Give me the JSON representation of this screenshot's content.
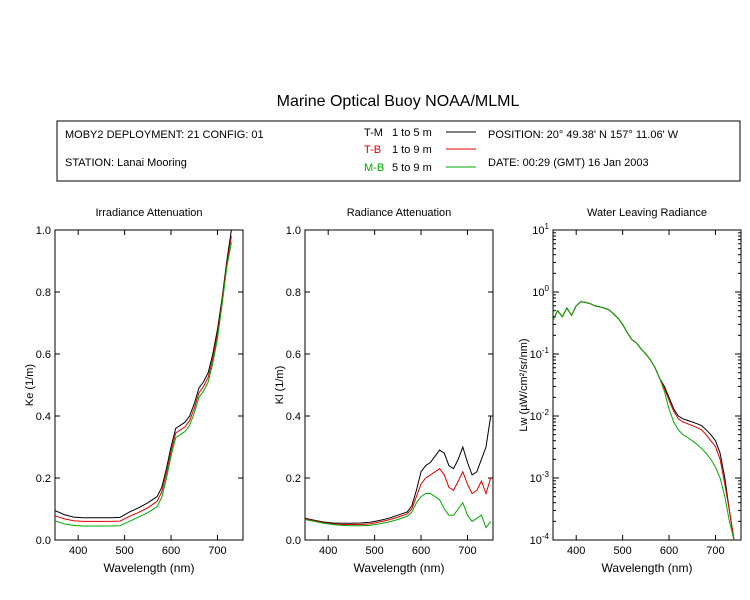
{
  "title": "Marine Optical Buoy NOAA/MLML",
  "header": {
    "deployment": "MOBY2 DEPLOYMENT: 21 CONFIG: 01",
    "station": "STATION: Lanai Mooring",
    "position": "POSITION: 20° 49.38' N   157° 11.06' W",
    "date": "DATE: 00:29 (GMT) 16 Jan 2003"
  },
  "legend": [
    {
      "code": "T-M",
      "range": "1 to 5  m",
      "color": "#000000"
    },
    {
      "code": "T-B",
      "range": "1 to 9  m",
      "color": "#dd0000"
    },
    {
      "code": "M-B",
      "range": "5 to 9  m",
      "color": "#00aa00"
    }
  ],
  "chart_data": [
    {
      "type": "line",
      "title": "Irradiance Attenuation",
      "xlabel": "Wavelength (nm)",
      "ylabel": "Ke  (1/m)",
      "xlim": [
        350,
        755
      ],
      "ylim": [
        0,
        1
      ],
      "xticks": [
        400,
        500,
        600,
        700
      ],
      "yticks": [
        0.0,
        0.2,
        0.4,
        0.6,
        0.8,
        1.0
      ],
      "ytick_labels": [
        "0.0",
        "0.2",
        "0.4",
        "0.6",
        "0.8",
        "1.0"
      ],
      "x": [
        350,
        370,
        390,
        410,
        430,
        450,
        470,
        490,
        510,
        530,
        550,
        570,
        580,
        590,
        600,
        610,
        620,
        630,
        640,
        650,
        660,
        670,
        680,
        690,
        700,
        710,
        720,
        730
      ],
      "series": [
        {
          "name": "T-M",
          "color": "#000000",
          "values": [
            0.095,
            0.082,
            0.074,
            0.072,
            0.072,
            0.072,
            0.072,
            0.073,
            0.09,
            0.104,
            0.12,
            0.14,
            0.17,
            0.23,
            0.3,
            0.36,
            0.37,
            0.38,
            0.4,
            0.44,
            0.49,
            0.51,
            0.54,
            0.6,
            0.68,
            0.78,
            0.9,
            1.0
          ]
        },
        {
          "name": "T-B",
          "color": "#dd0000",
          "values": [
            0.078,
            0.068,
            0.062,
            0.06,
            0.06,
            0.06,
            0.06,
            0.061,
            0.076,
            0.089,
            0.104,
            0.125,
            0.155,
            0.215,
            0.285,
            0.345,
            0.355,
            0.365,
            0.385,
            0.425,
            0.475,
            0.495,
            0.525,
            0.585,
            0.665,
            0.77,
            0.89,
            0.98
          ]
        },
        {
          "name": "M-B",
          "color": "#00aa00",
          "values": [
            0.062,
            0.052,
            0.047,
            0.045,
            0.045,
            0.045,
            0.045,
            0.046,
            0.06,
            0.074,
            0.088,
            0.108,
            0.138,
            0.198,
            0.27,
            0.33,
            0.34,
            0.35,
            0.37,
            0.41,
            0.46,
            0.48,
            0.51,
            0.57,
            0.65,
            0.76,
            0.88,
            0.96
          ]
        }
      ]
    },
    {
      "type": "line",
      "title": "Radiance Attenuation",
      "xlabel": "Wavelength (nm)",
      "ylabel": "Kl  (1/m)",
      "xlim": [
        350,
        755
      ],
      "ylim": [
        0,
        1
      ],
      "xticks": [
        400,
        500,
        600,
        700
      ],
      "yticks": [
        0.0,
        0.2,
        0.4,
        0.6,
        0.8,
        1.0
      ],
      "ytick_labels": [
        "0.0",
        "0.2",
        "0.4",
        "0.6",
        "0.8",
        "1.0"
      ],
      "x": [
        350,
        370,
        390,
        410,
        430,
        450,
        470,
        490,
        510,
        530,
        550,
        570,
        580,
        590,
        600,
        610,
        620,
        630,
        640,
        650,
        660,
        670,
        680,
        690,
        700,
        710,
        720,
        730,
        740,
        750
      ],
      "series": [
        {
          "name": "T-M",
          "color": "#000000",
          "values": [
            0.07,
            0.064,
            0.058,
            0.055,
            0.054,
            0.054,
            0.055,
            0.057,
            0.063,
            0.07,
            0.08,
            0.09,
            0.11,
            0.16,
            0.22,
            0.24,
            0.25,
            0.27,
            0.29,
            0.28,
            0.24,
            0.23,
            0.26,
            0.3,
            0.25,
            0.21,
            0.22,
            0.26,
            0.3,
            0.4
          ]
        },
        {
          "name": "T-B",
          "color": "#dd0000",
          "values": [
            0.068,
            0.062,
            0.056,
            0.052,
            0.05,
            0.05,
            0.05,
            0.052,
            0.058,
            0.065,
            0.074,
            0.084,
            0.1,
            0.14,
            0.18,
            0.2,
            0.21,
            0.22,
            0.23,
            0.21,
            0.17,
            0.16,
            0.19,
            0.22,
            0.18,
            0.15,
            0.16,
            0.19,
            0.15,
            0.2
          ]
        },
        {
          "name": "M-B",
          "color": "#00aa00",
          "values": [
            0.066,
            0.06,
            0.054,
            0.05,
            0.047,
            0.046,
            0.046,
            0.047,
            0.052,
            0.058,
            0.066,
            0.076,
            0.09,
            0.12,
            0.14,
            0.15,
            0.15,
            0.14,
            0.13,
            0.1,
            0.08,
            0.08,
            0.1,
            0.12,
            0.08,
            0.06,
            0.07,
            0.08,
            0.04,
            0.06
          ]
        }
      ]
    },
    {
      "type": "line",
      "title": "Water Leaving Radiance",
      "xlabel": "Wavelength (nm)",
      "ylabel": "Lw  (µW/cm²/sr/nm)",
      "yscale": "log",
      "xlim": [
        350,
        755
      ],
      "ylim": [
        0.0001,
        10
      ],
      "xticks": [
        400,
        500,
        600,
        700
      ],
      "ylog_exponents": [
        -4,
        -3,
        -2,
        -1,
        0,
        1
      ],
      "x": [
        350,
        360,
        370,
        380,
        390,
        400,
        410,
        420,
        430,
        440,
        450,
        460,
        470,
        480,
        490,
        500,
        510,
        520,
        530,
        540,
        550,
        560,
        570,
        580,
        590,
        600,
        610,
        620,
        630,
        640,
        650,
        660,
        670,
        680,
        690,
        700,
        710,
        720,
        730,
        740
      ],
      "series": [
        {
          "name": "T-M",
          "color": "#000000",
          "values": [
            0.35,
            0.5,
            0.4,
            0.55,
            0.42,
            0.6,
            0.7,
            0.68,
            0.65,
            0.6,
            0.58,
            0.55,
            0.52,
            0.45,
            0.38,
            0.3,
            0.22,
            0.17,
            0.15,
            0.12,
            0.1,
            0.08,
            0.06,
            0.04,
            0.03,
            0.02,
            0.013,
            0.01,
            0.009,
            0.0085,
            0.008,
            0.0075,
            0.007,
            0.006,
            0.005,
            0.004,
            0.0025,
            0.001,
            0.0003,
            0.0001
          ]
        },
        {
          "name": "T-B",
          "color": "#dd0000",
          "values": [
            0.35,
            0.5,
            0.4,
            0.55,
            0.42,
            0.6,
            0.7,
            0.68,
            0.65,
            0.6,
            0.58,
            0.55,
            0.52,
            0.45,
            0.38,
            0.3,
            0.22,
            0.17,
            0.15,
            0.12,
            0.1,
            0.08,
            0.06,
            0.04,
            0.028,
            0.018,
            0.012,
            0.009,
            0.008,
            0.0075,
            0.007,
            0.0065,
            0.006,
            0.005,
            0.004,
            0.0032,
            0.002,
            0.0008,
            0.0003,
            0.0001
          ]
        },
        {
          "name": "M-B",
          "color": "#00aa00",
          "values": [
            0.35,
            0.5,
            0.4,
            0.55,
            0.42,
            0.6,
            0.7,
            0.68,
            0.65,
            0.6,
            0.58,
            0.55,
            0.52,
            0.45,
            0.38,
            0.3,
            0.22,
            0.17,
            0.15,
            0.12,
            0.1,
            0.08,
            0.06,
            0.04,
            0.025,
            0.013,
            0.008,
            0.006,
            0.005,
            0.0045,
            0.004,
            0.0035,
            0.003,
            0.0025,
            0.002,
            0.0015,
            0.001,
            0.0005,
            0.0002,
            0.0001
          ]
        }
      ]
    }
  ]
}
